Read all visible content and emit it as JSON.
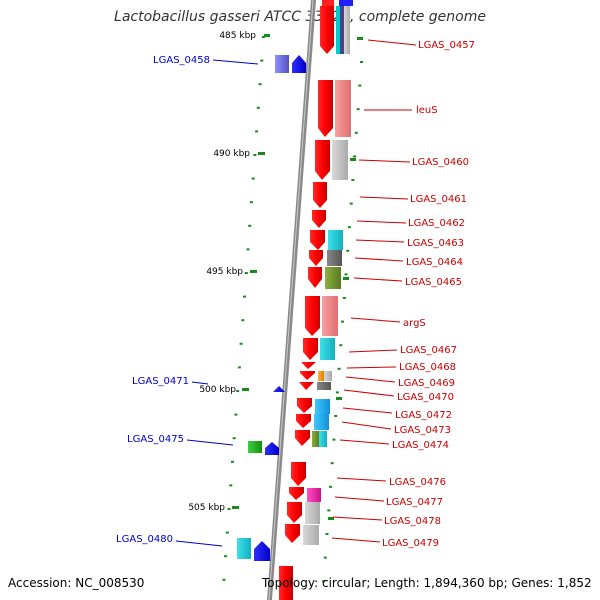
{
  "title": "Lactobacillus gasseri ATCC 33323, complete genome",
  "footer": {
    "accession": "Accession: NC_008530",
    "info": "Topology: circular; Length: 1,894,360 bp; Genes: 1,852"
  },
  "colors": {
    "forward_arrow": "#ff0000",
    "reverse_arrow": "#0000ff",
    "label_forward": "#cc0000",
    "label_reverse": "#0000cc",
    "backbone": "#808080",
    "tick": "#1a8a1a"
  },
  "ticks": [
    "485 kbp",
    "490 kbp",
    "495 kbp",
    "500 kbp",
    "505 kbp"
  ],
  "forward_genes": [
    "LGAS_0457",
    "leuS",
    "LGAS_0460",
    "LGAS_0461",
    "LGAS_0462",
    "LGAS_0463",
    "LGAS_0464",
    "LGAS_0465",
    "argS",
    "LGAS_0467",
    "LGAS_0468",
    "LGAS_0469",
    "LGAS_0470",
    "LGAS_0472",
    "LGAS_0473",
    "LGAS_0474",
    "LGAS_0476",
    "LGAS_0477",
    "LGAS_0478",
    "LGAS_0479"
  ],
  "reverse_genes": [
    "LGAS_0458",
    "LGAS_0471",
    "LGAS_0475",
    "LGAS_0480"
  ]
}
